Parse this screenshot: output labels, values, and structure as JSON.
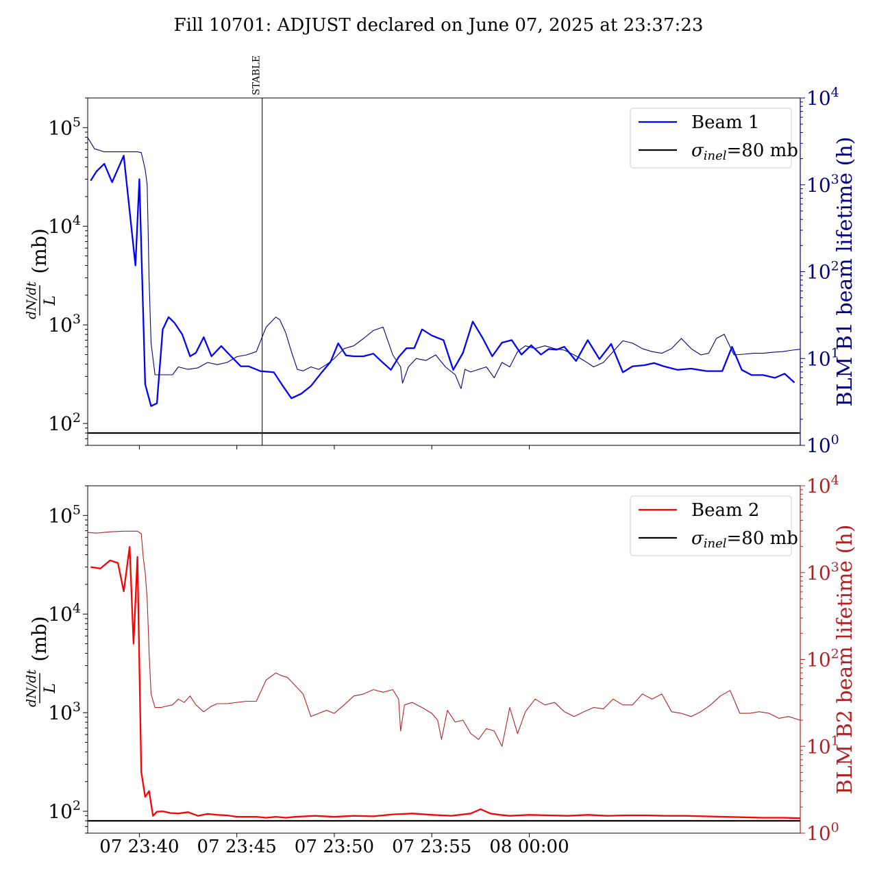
{
  "figure": {
    "title": "Fill 10701: ADJUST declared on June 07, 2025 at 23:37:23"
  },
  "chart_data": [
    {
      "type": "line",
      "panel": "top",
      "ylabel_left_fraction_num": "dN/dt",
      "ylabel_left_fraction_den": "L",
      "ylabel_left_unit": "(mb)",
      "ylabel_right": "BLM B1 beam lifetime (h)",
      "yscale": "log",
      "ylim_left": [
        60,
        200000
      ],
      "ylim_right": [
        1,
        10000
      ],
      "left_ticks": [
        {
          "base": "10",
          "exp": "2",
          "v": 100
        },
        {
          "base": "10",
          "exp": "3",
          "v": 1000
        },
        {
          "base": "10",
          "exp": "4",
          "v": 10000
        },
        {
          "base": "10",
          "exp": "5",
          "v": 100000
        }
      ],
      "right_ticks": [
        {
          "base": "10",
          "exp": "0",
          "v": 1
        },
        {
          "base": "10",
          "exp": "1",
          "v": 10
        },
        {
          "base": "10",
          "exp": "2",
          "v": 100
        },
        {
          "base": "10",
          "exp": "3",
          "v": 1000
        },
        {
          "base": "10",
          "exp": "4",
          "v": 10000
        }
      ],
      "right_color": "#000080",
      "grid": false,
      "legend_position": "top-right",
      "marker": {
        "label": "STABLE",
        "x": 46.3
      },
      "reference": {
        "name_sym": "σ",
        "name_sub": "inel",
        "name_tail": "=80 mb",
        "value": 80,
        "color": "#000000"
      },
      "series": [
        {
          "name": "Beam 1",
          "axis": "left",
          "color": "#0000ff",
          "x": [
            37.5,
            37.8,
            38.2,
            38.6,
            39.2,
            39.8,
            40.0,
            40.3,
            40.6,
            40.9,
            41.2,
            41.5,
            41.8,
            42.2,
            42.6,
            42.9,
            43.3,
            43.7,
            44.2,
            44.7,
            45.2,
            45.6,
            46.2,
            46.9,
            47.3,
            47.8,
            48.3,
            48.8,
            49.3,
            49.8,
            50.2,
            50.6,
            51.0,
            51.5,
            52.0,
            52.4,
            52.9,
            53.3,
            53.7,
            54.1,
            54.5,
            55.0,
            55.6,
            56.1,
            56.6,
            57.1,
            57.6,
            58.1,
            58.6,
            59.1,
            59.6,
            60.1,
            60.6,
            61.0,
            61.4,
            61.8,
            62.4,
            63.0,
            63.6,
            64.2,
            64.8,
            65.3,
            65.9,
            66.4,
            66.9,
            67.6,
            68.3,
            69.1,
            69.9,
            70.4,
            70.9,
            71.4,
            72.0,
            72.6,
            73.1,
            73.6
          ],
          "y": [
            29000,
            36000,
            43000,
            28000,
            52000,
            4000,
            30000,
            250,
            150,
            160,
            900,
            1200,
            1050,
            800,
            480,
            520,
            750,
            480,
            610,
            480,
            380,
            380,
            340,
            330,
            250,
            180,
            200,
            240,
            320,
            420,
            650,
            490,
            480,
            480,
            510,
            430,
            350,
            470,
            580,
            580,
            900,
            780,
            700,
            350,
            520,
            1080,
            740,
            480,
            660,
            700,
            500,
            620,
            500,
            570,
            560,
            600,
            430,
            700,
            450,
            640,
            330,
            380,
            390,
            410,
            380,
            350,
            360,
            340,
            340,
            600,
            350,
            310,
            310,
            290,
            320,
            260
          ]
        },
        {
          "name": "BLM B1 beam lifetime (h)",
          "axis": "right",
          "color": "#000080",
          "x": [
            37.35,
            37.7,
            38.2,
            38.8,
            39.4,
            39.9,
            40.1,
            40.3,
            40.4,
            40.45,
            40.5,
            40.6,
            40.8,
            41.1,
            41.4,
            41.7,
            42.0,
            42.5,
            43.0,
            43.5,
            44.0,
            44.5,
            45.0,
            45.5,
            46.0,
            46.5,
            47.0,
            47.2,
            47.5,
            47.8,
            48.1,
            48.4,
            48.8,
            49.2,
            49.6,
            50.0,
            50.5,
            51.0,
            51.5,
            52.0,
            52.5,
            53.0,
            53.4,
            53.5,
            53.8,
            54.2,
            54.7,
            55.2,
            55.7,
            56.2,
            56.5,
            56.7,
            57.0,
            57.4,
            57.8,
            58.2,
            58.6,
            59.0,
            59.4,
            59.8,
            60.3,
            60.8,
            61.3,
            61.8,
            62.3,
            62.8,
            63.3,
            63.8,
            64.3,
            64.8,
            65.3,
            65.8,
            66.3,
            66.8,
            67.3,
            67.8,
            68.3,
            68.8,
            69.2,
            69.4,
            69.6,
            70.0,
            70.5,
            71.0,
            71.5,
            72.0,
            72.5,
            73.0,
            73.5,
            73.9
          ],
          "y": [
            3500,
            2600,
            2400,
            2400,
            2400,
            2400,
            2350,
            1500,
            1000,
            300,
            80,
            15,
            6.5,
            6.5,
            6.5,
            6.5,
            8,
            7.5,
            7.8,
            9,
            8.5,
            9,
            10.5,
            11,
            12,
            23,
            30,
            28,
            20,
            12,
            7.5,
            7.2,
            8,
            7.5,
            8.5,
            10,
            13,
            14,
            17,
            21,
            23,
            11,
            8,
            5.2,
            8,
            10,
            9.5,
            11,
            8,
            6.5,
            4.5,
            7.5,
            7,
            7.5,
            8,
            6,
            9,
            8,
            12,
            14,
            13,
            14,
            13,
            12.5,
            11,
            9.5,
            8,
            9,
            12,
            16,
            15,
            13,
            12,
            11.5,
            13,
            17,
            13,
            11,
            11.5,
            14,
            17,
            19,
            11,
            11.2,
            11.5,
            11.5,
            11.8,
            12,
            12.5,
            12.8
          ]
        }
      ]
    },
    {
      "type": "line",
      "panel": "bottom",
      "ylabel_left_fraction_num": "dN/dt",
      "ylabel_left_fraction_den": "L",
      "ylabel_left_unit": "(mb)",
      "ylabel_right": "BLM B2 beam lifetime (h)",
      "yscale": "log",
      "ylim_left": [
        60,
        200000
      ],
      "ylim_right": [
        1,
        10000
      ],
      "left_ticks": [
        {
          "base": "10",
          "exp": "2",
          "v": 100
        },
        {
          "base": "10",
          "exp": "3",
          "v": 1000
        },
        {
          "base": "10",
          "exp": "4",
          "v": 10000
        },
        {
          "base": "10",
          "exp": "5",
          "v": 100000
        }
      ],
      "right_ticks": [
        {
          "base": "10",
          "exp": "0",
          "v": 1
        },
        {
          "base": "10",
          "exp": "1",
          "v": 10
        },
        {
          "base": "10",
          "exp": "2",
          "v": 100
        },
        {
          "base": "10",
          "exp": "3",
          "v": 1000
        },
        {
          "base": "10",
          "exp": "4",
          "v": 10000
        }
      ],
      "right_color": "#b22222",
      "grid": false,
      "legend_position": "top-right",
      "reference": {
        "name_sym": "σ",
        "name_sub": "inel",
        "name_tail": "=80 mb",
        "value": 80,
        "color": "#000000"
      },
      "x_ticks": [
        "07 23:40",
        "07 23:45",
        "07 23:50",
        "07 23:55",
        "08 00:00"
      ],
      "series": [
        {
          "name": "Beam 2",
          "axis": "left",
          "color": "#ff0000",
          "x": [
            37.5,
            38.0,
            38.5,
            38.9,
            39.2,
            39.5,
            39.7,
            39.9,
            40.1,
            40.3,
            40.5,
            40.7,
            40.9,
            41.2,
            41.6,
            42.0,
            42.5,
            43.0,
            43.5,
            44.0,
            44.5,
            45.0,
            45.5,
            46.0,
            46.5,
            47.0,
            47.5,
            48.0,
            49.0,
            50.0,
            51.0,
            52.0,
            53.0,
            54.0,
            55.0,
            56.0,
            57.0,
            57.5,
            58.0,
            58.5,
            59.0,
            60.0,
            61.0,
            62.0,
            63.0,
            64.0,
            65.0,
            66.0,
            67.0,
            68.0,
            69.0,
            70.0,
            71.0,
            72.0,
            73.0,
            73.9
          ],
          "y": [
            30000,
            29000,
            35000,
            33000,
            17000,
            48000,
            5000,
            38000,
            250,
            140,
            160,
            90,
            99,
            100,
            96,
            95,
            98,
            90,
            94,
            92,
            91,
            88,
            88,
            88,
            86,
            88,
            86,
            88,
            90,
            88,
            90,
            89,
            93,
            95,
            92,
            90,
            95,
            105,
            95,
            92,
            90,
            92,
            91,
            90,
            92,
            90,
            91,
            91,
            90,
            90,
            89,
            88,
            87,
            86,
            86,
            85
          ]
        },
        {
          "name": "BLM B2 beam lifetime (h)",
          "axis": "right",
          "color": "#b22222",
          "x": [
            37.35,
            37.8,
            38.5,
            39.2,
            39.9,
            40.1,
            40.2,
            40.3,
            40.4,
            40.45,
            40.5,
            40.6,
            40.8,
            41.1,
            41.4,
            41.7,
            42.0,
            42.3,
            42.6,
            42.9,
            43.3,
            43.7,
            44.0,
            44.5,
            45.0,
            45.5,
            46.0,
            46.5,
            47.0,
            47.3,
            47.6,
            48.0,
            48.4,
            48.8,
            49.2,
            49.6,
            50.0,
            50.5,
            51.0,
            51.5,
            52.0,
            52.5,
            53.0,
            53.3,
            53.4,
            53.6,
            54.0,
            54.5,
            55.0,
            55.3,
            55.5,
            55.8,
            56.2,
            56.6,
            57.0,
            57.4,
            57.8,
            58.2,
            58.6,
            59.0,
            59.4,
            59.8,
            60.3,
            60.8,
            61.3,
            61.8,
            62.3,
            62.8,
            63.3,
            63.8,
            64.3,
            64.8,
            65.3,
            65.8,
            66.3,
            66.8,
            67.3,
            67.8,
            68.3,
            68.8,
            69.3,
            69.8,
            70.3,
            70.8,
            71.3,
            71.8,
            72.3,
            72.8,
            73.3,
            73.9
          ],
          "y": [
            2900,
            2850,
            2950,
            3000,
            3000,
            2800,
            1500,
            1000,
            500,
            250,
            120,
            40,
            28,
            28,
            29,
            30,
            35,
            32,
            38,
            30,
            25,
            29,
            31,
            31,
            32,
            33,
            33,
            58,
            70,
            65,
            62,
            50,
            40,
            22,
            24,
            26,
            24,
            30,
            38,
            40,
            45,
            42,
            45,
            35,
            15,
            30,
            32,
            28,
            24,
            20,
            12,
            26,
            19,
            20,
            14,
            12,
            16,
            15,
            10,
            28,
            14,
            25,
            35,
            30,
            32,
            25,
            22,
            25,
            28,
            27,
            35,
            30,
            30,
            40,
            35,
            40,
            25,
            24,
            22,
            25,
            30,
            38,
            44,
            24,
            24,
            25,
            24,
            21,
            22,
            20
          ]
        }
      ]
    }
  ]
}
